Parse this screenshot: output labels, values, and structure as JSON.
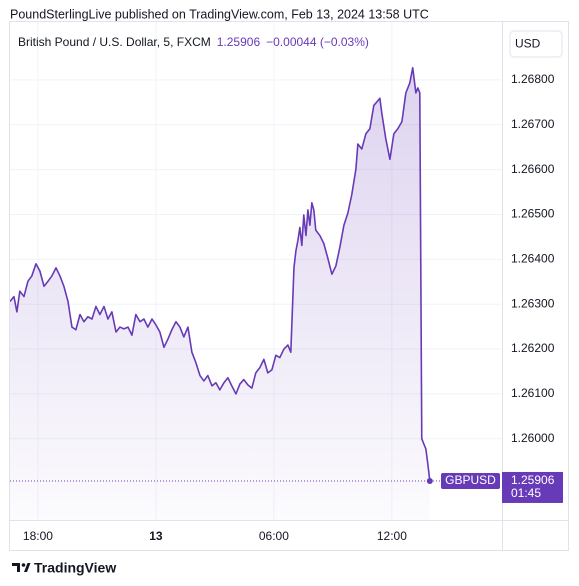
{
  "header": {
    "title": "PoundSterlingLive published on TradingView.com, Feb 13, 2024 13:58 UTC"
  },
  "footer": {
    "brand": "TradingView"
  },
  "chart_data": {
    "type": "line",
    "title": "British Pound / U.S. Dollar, 5, FXCM",
    "change": "−0.00044 (−0.03%)",
    "currency": "USD",
    "last": 1.25906,
    "countdown": "01:45",
    "grid": true,
    "x": [
      16.58,
      16.78,
      16.93,
      17.08,
      17.29,
      17.49,
      17.69,
      17.9,
      18.1,
      18.31,
      18.51,
      18.71,
      18.92,
      19.12,
      19.32,
      19.53,
      19.73,
      19.93,
      20.14,
      20.34,
      20.54,
      20.75,
      20.95,
      21.15,
      21.36,
      21.56,
      21.76,
      21.97,
      22.17,
      22.37,
      22.58,
      22.78,
      22.98,
      23.19,
      23.39,
      23.59,
      23.8,
      24.0,
      24.2,
      24.41,
      24.61,
      24.81,
      25.02,
      25.22,
      25.42,
      25.63,
      25.83,
      26.03,
      26.24,
      26.44,
      26.64,
      26.85,
      27.05,
      27.25,
      27.46,
      27.66,
      27.86,
      28.07,
      28.27,
      28.47,
      28.68,
      28.88,
      29.08,
      29.29,
      29.49,
      29.69,
      29.9,
      30.1,
      30.3,
      30.51,
      30.71,
      30.86,
      31.02,
      31.12,
      31.22,
      31.32,
      31.42,
      31.52,
      31.63,
      31.73,
      31.83,
      31.93,
      32.03,
      32.13,
      32.34,
      32.54,
      32.74,
      32.95,
      33.15,
      33.35,
      33.56,
      33.76,
      33.96,
      34.17,
      34.27,
      34.47,
      34.68,
      34.88,
      35.08,
      35.18,
      35.39,
      35.49,
      35.69,
      35.9,
      36.1,
      36.3,
      36.51,
      36.71,
      36.91,
      37.06,
      37.22,
      37.32,
      37.42,
      37.52,
      37.62,
      37.73,
      37.83,
      37.93
    ],
    "series": [
      {
        "name": "GBPUSD",
        "color": "#673ab7",
        "values": [
          1.26306,
          1.26317,
          1.26283,
          1.26329,
          1.26317,
          1.26351,
          1.26363,
          1.2639,
          1.26374,
          1.2634,
          1.26351,
          1.26363,
          1.26381,
          1.26363,
          1.2634,
          1.26306,
          1.26249,
          1.26243,
          1.26277,
          1.26261,
          1.26272,
          1.26267,
          1.26295,
          1.26277,
          1.26295,
          1.26267,
          1.26283,
          1.26238,
          1.26249,
          1.26245,
          1.26249,
          1.26231,
          1.26277,
          1.26261,
          1.26267,
          1.26249,
          1.26267,
          1.26254,
          1.26238,
          1.26204,
          1.26222,
          1.26243,
          1.26261,
          1.26249,
          1.26227,
          1.26249,
          1.26193,
          1.2617,
          1.26141,
          1.26129,
          1.26141,
          1.26118,
          1.26125,
          1.26109,
          1.26125,
          1.26136,
          1.26118,
          1.261,
          1.26122,
          1.26132,
          1.2612,
          1.26113,
          1.26147,
          1.26159,
          1.26177,
          1.26147,
          1.26154,
          1.26186,
          1.26181,
          1.262,
          1.26209,
          1.26193,
          1.26381,
          1.26419,
          1.26442,
          1.26471,
          1.26431,
          1.26499,
          1.26453,
          1.2651,
          1.26476,
          1.26526,
          1.2651,
          1.26465,
          1.26453,
          1.26435,
          1.26403,
          1.26367,
          1.26385,
          1.26426,
          1.26476,
          1.26503,
          1.26544,
          1.26601,
          1.26657,
          1.26646,
          1.2668,
          1.26691,
          1.26743,
          1.26748,
          1.26759,
          1.26725,
          1.26669,
          1.26623,
          1.2668,
          1.26691,
          1.26707,
          1.26771,
          1.26793,
          1.26827,
          1.26771,
          1.26782,
          1.26771,
          1.26,
          1.25989,
          1.25977,
          1.25943,
          1.25906
        ]
      }
    ],
    "xlim": [
      16.58,
      41.6
    ],
    "ylim": [
      1.25819,
      1.26929
    ],
    "xticks": [
      {
        "value": 18,
        "label": "18:00"
      },
      {
        "value": 24,
        "label": "13"
      },
      {
        "value": 30,
        "label": "06:00"
      },
      {
        "value": 36,
        "label": "12:00"
      }
    ],
    "yticks": [
      {
        "value": 1.26,
        "label": "1.26000"
      },
      {
        "value": 1.261,
        "label": "1.26100"
      },
      {
        "value": 1.262,
        "label": "1.26200"
      },
      {
        "value": 1.263,
        "label": "1.26300"
      },
      {
        "value": 1.264,
        "label": "1.26400"
      },
      {
        "value": 1.265,
        "label": "1.26500"
      },
      {
        "value": 1.266,
        "label": "1.26600"
      },
      {
        "value": 1.267,
        "label": "1.26700"
      },
      {
        "value": 1.268,
        "label": "1.26800"
      }
    ]
  }
}
